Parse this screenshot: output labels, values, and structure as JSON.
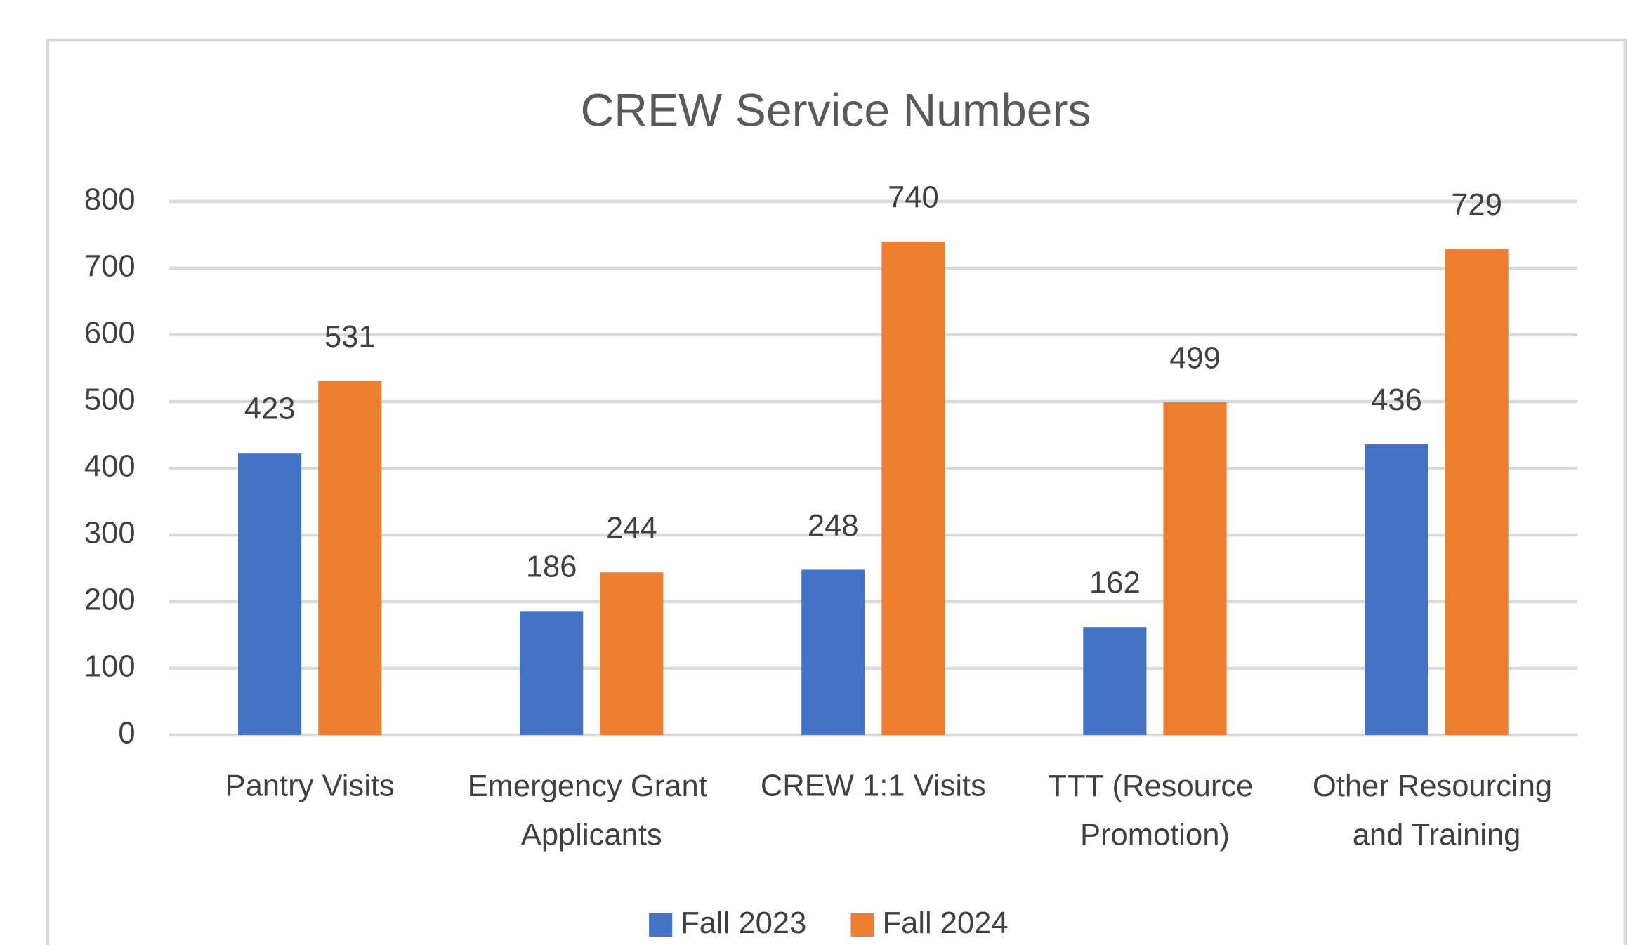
{
  "chart_data": {
    "type": "bar",
    "title": "CREW Service Numbers",
    "categories": [
      "Pantry Visits",
      "Emergency Grant Applicants",
      "CREW 1:1 Visits",
      "TTT (Resource Promotion)",
      "Other Resourcing and Training"
    ],
    "series": [
      {
        "name": "Fall 2023",
        "color": "#4472c4",
        "values": [
          423,
          186,
          248,
          162,
          436
        ]
      },
      {
        "name": "Fall 2024",
        "color": "#ed7d31",
        "values": [
          531,
          244,
          740,
          499,
          729
        ]
      }
    ],
    "ylim": [
      0,
      800
    ],
    "yticks": [
      0,
      100,
      200,
      300,
      400,
      500,
      600,
      700,
      800
    ],
    "grid": true,
    "legend": "bottom"
  }
}
